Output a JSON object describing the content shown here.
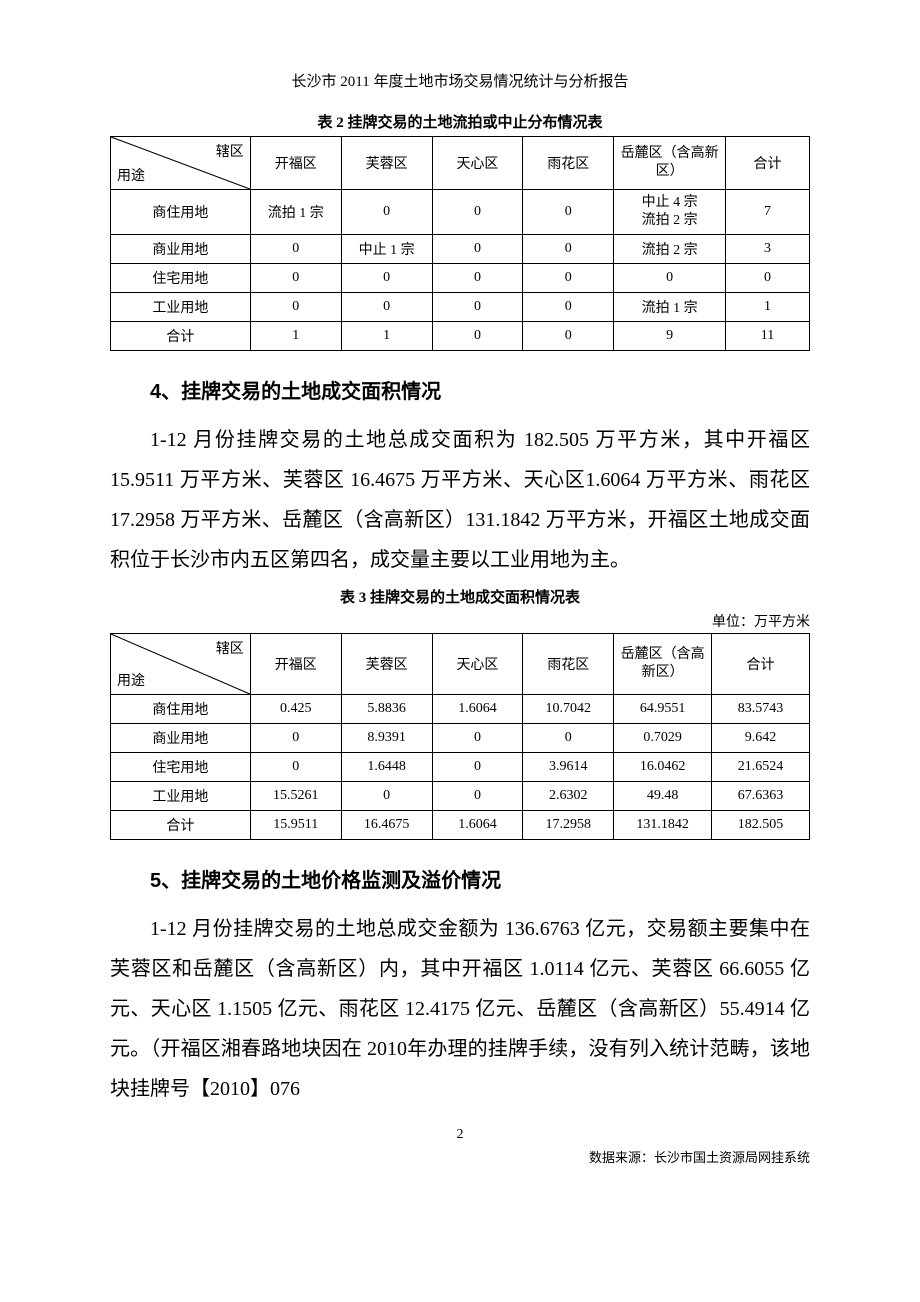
{
  "header_title": "长沙市 2011 年度土地市场交易情况统计与分析报告",
  "table2": {
    "title": "表 2   挂牌交易的土地流拍或中止分布情况表",
    "diag_top": "辖区",
    "diag_bottom": "用途",
    "columns": [
      "开福区",
      "芙蓉区",
      "天心区",
      "雨花区",
      "岳麓区（含高新区）",
      "合计"
    ],
    "rows": [
      {
        "label": "商住用地",
        "cells": [
          "流拍 1 宗",
          "0",
          "0",
          "0",
          "中止 4 宗\n流拍 2 宗",
          "7"
        ]
      },
      {
        "label": "商业用地",
        "cells": [
          "0",
          "中止 1 宗",
          "0",
          "0",
          "流拍 2 宗",
          "3"
        ]
      },
      {
        "label": "住宅用地",
        "cells": [
          "0",
          "0",
          "0",
          "0",
          "0",
          "0"
        ]
      },
      {
        "label": "工业用地",
        "cells": [
          "0",
          "0",
          "0",
          "0",
          "流拍 1 宗",
          "1"
        ]
      },
      {
        "label": "合计",
        "cells": [
          "1",
          "1",
          "0",
          "0",
          "9",
          "11"
        ]
      }
    ]
  },
  "section4": {
    "heading": "4、挂牌交易的土地成交面积情况",
    "para": "1-12 月份挂牌交易的土地总成交面积为 182.505 万平方米，其中开福区 15.9511 万平方米、芙蓉区 16.4675 万平方米、天心区1.6064 万平方米、雨花区 17.2958 万平方米、岳麓区（含高新区）131.1842 万平方米，开福区土地成交面积位于长沙市内五区第四名，成交量主要以工业用地为主。"
  },
  "table3": {
    "title": "表 3   挂牌交易的土地成交面积情况表",
    "unit": "单位：万平方米",
    "diag_top": "辖区",
    "diag_bottom": "用途",
    "columns": [
      "开福区",
      "芙蓉区",
      "天心区",
      "雨花区",
      "岳麓区（含高新区）",
      "合计"
    ],
    "rows": [
      {
        "label": "商住用地",
        "cells": [
          "0.425",
          "5.8836",
          "1.6064",
          "10.7042",
          "64.9551",
          "83.5743"
        ]
      },
      {
        "label": "商业用地",
        "cells": [
          "0",
          "8.9391",
          "0",
          "0",
          "0.7029",
          "9.642"
        ]
      },
      {
        "label": "住宅用地",
        "cells": [
          "0",
          "1.6448",
          "0",
          "3.9614",
          "16.0462",
          "21.6524"
        ]
      },
      {
        "label": "工业用地",
        "cells": [
          "15.5261",
          "0",
          "0",
          "2.6302",
          "49.48",
          "67.6363"
        ]
      },
      {
        "label": "合计",
        "cells": [
          "15.9511",
          "16.4675",
          "1.6064",
          "17.2958",
          "131.1842",
          "182.505"
        ]
      }
    ]
  },
  "section5": {
    "heading": "5、挂牌交易的土地价格监测及溢价情况",
    "para": "1-12 月份挂牌交易的土地总成交金额为 136.6763 亿元，交易额主要集中在芙蓉区和岳麓区（含高新区）内，其中开福区 1.0114 亿元、芙蓉区 66.6055 亿元、天心区 1.1505 亿元、雨花区 12.4175 亿元、岳麓区（含高新区）55.4914 亿元。（开福区湘春路地块因在 2010年办理的挂牌手续，没有列入统计范畴，该地块挂牌号【2010】076"
  },
  "page_number": "2",
  "footer_source": "数据来源：长沙市国土资源局网挂系统"
}
